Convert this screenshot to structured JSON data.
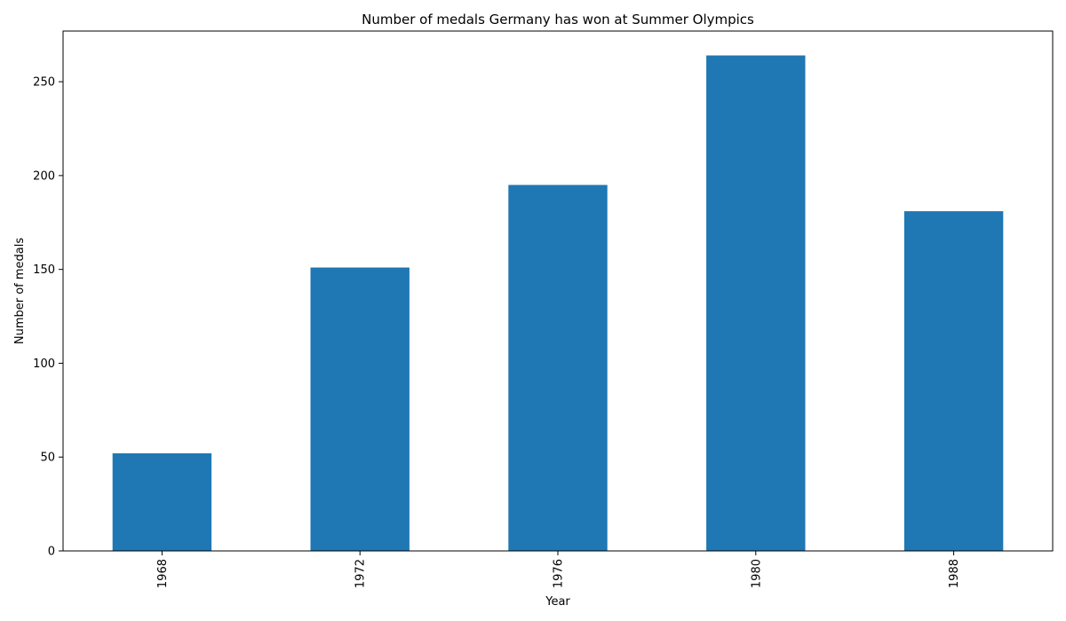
{
  "chart_data": {
    "type": "bar",
    "title": "Number of medals Germany has won at Summer Olympics",
    "xlabel": "Year",
    "ylabel": "Number of medals",
    "categories": [
      "1968",
      "1972",
      "1976",
      "1980",
      "1988"
    ],
    "values": [
      52,
      151,
      195,
      264,
      181
    ],
    "ylim": [
      0,
      277
    ],
    "yticks": [
      0,
      50,
      100,
      150,
      200,
      250
    ],
    "bar_color": "#1f77b4",
    "grid": false,
    "legend": "none"
  }
}
